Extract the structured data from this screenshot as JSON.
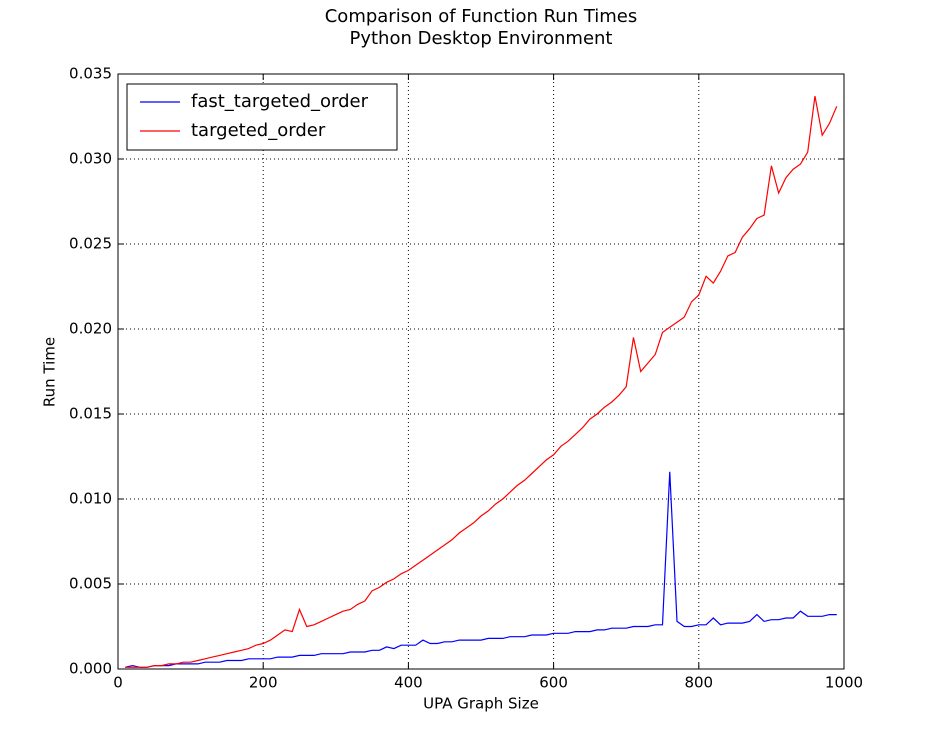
{
  "chart_data": {
    "type": "line",
    "title": "Comparison of Function Run Times",
    "subtitle": "Python Desktop Environment",
    "xlabel": "UPA Graph Size",
    "ylabel": "Run Time",
    "x": [
      10,
      20,
      30,
      40,
      50,
      60,
      70,
      80,
      90,
      100,
      110,
      120,
      130,
      140,
      150,
      160,
      170,
      180,
      190,
      200,
      210,
      220,
      230,
      240,
      250,
      260,
      270,
      280,
      290,
      300,
      310,
      320,
      330,
      340,
      350,
      360,
      370,
      380,
      390,
      400,
      410,
      420,
      430,
      440,
      450,
      460,
      470,
      480,
      490,
      500,
      510,
      520,
      530,
      540,
      550,
      560,
      570,
      580,
      590,
      600,
      610,
      620,
      630,
      640,
      650,
      660,
      670,
      680,
      690,
      700,
      710,
      720,
      730,
      740,
      750,
      760,
      770,
      780,
      790,
      800,
      810,
      820,
      830,
      840,
      850,
      860,
      870,
      880,
      890,
      900,
      910,
      920,
      930,
      940,
      950,
      960,
      970,
      980,
      990
    ],
    "series": [
      {
        "name": "fast_targeted_order",
        "color": "#0000ff",
        "values": [
          0.0001,
          0.0002,
          0.0001,
          0.0001,
          0.0002,
          0.0002,
          0.0002,
          0.0003,
          0.0003,
          0.0003,
          0.0003,
          0.0004,
          0.0004,
          0.0004,
          0.0005,
          0.0005,
          0.0005,
          0.0006,
          0.0006,
          0.0006,
          0.0006,
          0.0007,
          0.0007,
          0.0007,
          0.0008,
          0.0008,
          0.0008,
          0.0009,
          0.0009,
          0.0009,
          0.0009,
          0.001,
          0.001,
          0.001,
          0.0011,
          0.0011,
          0.0013,
          0.0012,
          0.0014,
          0.0014,
          0.0014,
          0.0017,
          0.0015,
          0.0015,
          0.0016,
          0.0016,
          0.0017,
          0.0017,
          0.0017,
          0.0017,
          0.0018,
          0.0018,
          0.0018,
          0.0019,
          0.0019,
          0.0019,
          0.002,
          0.002,
          0.002,
          0.0021,
          0.0021,
          0.0021,
          0.0022,
          0.0022,
          0.0022,
          0.0023,
          0.0023,
          0.0024,
          0.0024,
          0.0024,
          0.0025,
          0.0025,
          0.0025,
          0.0026,
          0.0026,
          0.0116,
          0.0028,
          0.0025,
          0.0025,
          0.0026,
          0.0026,
          0.003,
          0.0026,
          0.0027,
          0.0027,
          0.0027,
          0.0028,
          0.0032,
          0.0028,
          0.0029,
          0.0029,
          0.003,
          0.003,
          0.0034,
          0.0031,
          0.0031,
          0.0031,
          0.0032,
          0.0032
        ]
      },
      {
        "name": "targeted_order",
        "color": "#ff0000",
        "values": [
          0.0001,
          0.0001,
          0.0001,
          0.0001,
          0.0002,
          0.0002,
          0.0003,
          0.0003,
          0.0004,
          0.0004,
          0.0005,
          0.0006,
          0.0007,
          0.0008,
          0.0009,
          0.001,
          0.0011,
          0.0012,
          0.0014,
          0.0015,
          0.0017,
          0.002,
          0.0023,
          0.0022,
          0.0035,
          0.0025,
          0.0026,
          0.0028,
          0.003,
          0.0032,
          0.0034,
          0.0035,
          0.0038,
          0.004,
          0.0046,
          0.0048,
          0.0051,
          0.0053,
          0.0056,
          0.0058,
          0.0061,
          0.0064,
          0.0067,
          0.007,
          0.0073,
          0.0076,
          0.008,
          0.0083,
          0.0086,
          0.009,
          0.0093,
          0.0097,
          0.01,
          0.0104,
          0.0108,
          0.0111,
          0.0115,
          0.0119,
          0.0123,
          0.0126,
          0.0131,
          0.0134,
          0.0138,
          0.0142,
          0.0147,
          0.015,
          0.0154,
          0.0157,
          0.0161,
          0.0166,
          0.0195,
          0.0175,
          0.018,
          0.0185,
          0.0198,
          0.0201,
          0.0204,
          0.0207,
          0.0216,
          0.022,
          0.0231,
          0.0227,
          0.0234,
          0.0243,
          0.0245,
          0.0254,
          0.0259,
          0.0265,
          0.0267,
          0.0296,
          0.028,
          0.0289,
          0.0294,
          0.0297,
          0.0304,
          0.0337,
          0.0314,
          0.0321,
          0.0331
        ]
      }
    ],
    "xlim": [
      0,
      1000
    ],
    "xticks": [
      0,
      200,
      400,
      600,
      800,
      1000
    ],
    "ylim": [
      0,
      0.035
    ],
    "yticks": [
      {
        "value": 0,
        "label": "0.000"
      },
      {
        "value": 0.005,
        "label": "0.005"
      },
      {
        "value": 0.01,
        "label": "0.010"
      },
      {
        "value": 0.015,
        "label": "0.015"
      },
      {
        "value": 0.02,
        "label": "0.020"
      },
      {
        "value": 0.025,
        "label": "0.025"
      },
      {
        "value": 0.03,
        "label": "0.030"
      },
      {
        "value": 0.035,
        "label": "0.035"
      }
    ],
    "grid": true,
    "legend": "upper left"
  }
}
